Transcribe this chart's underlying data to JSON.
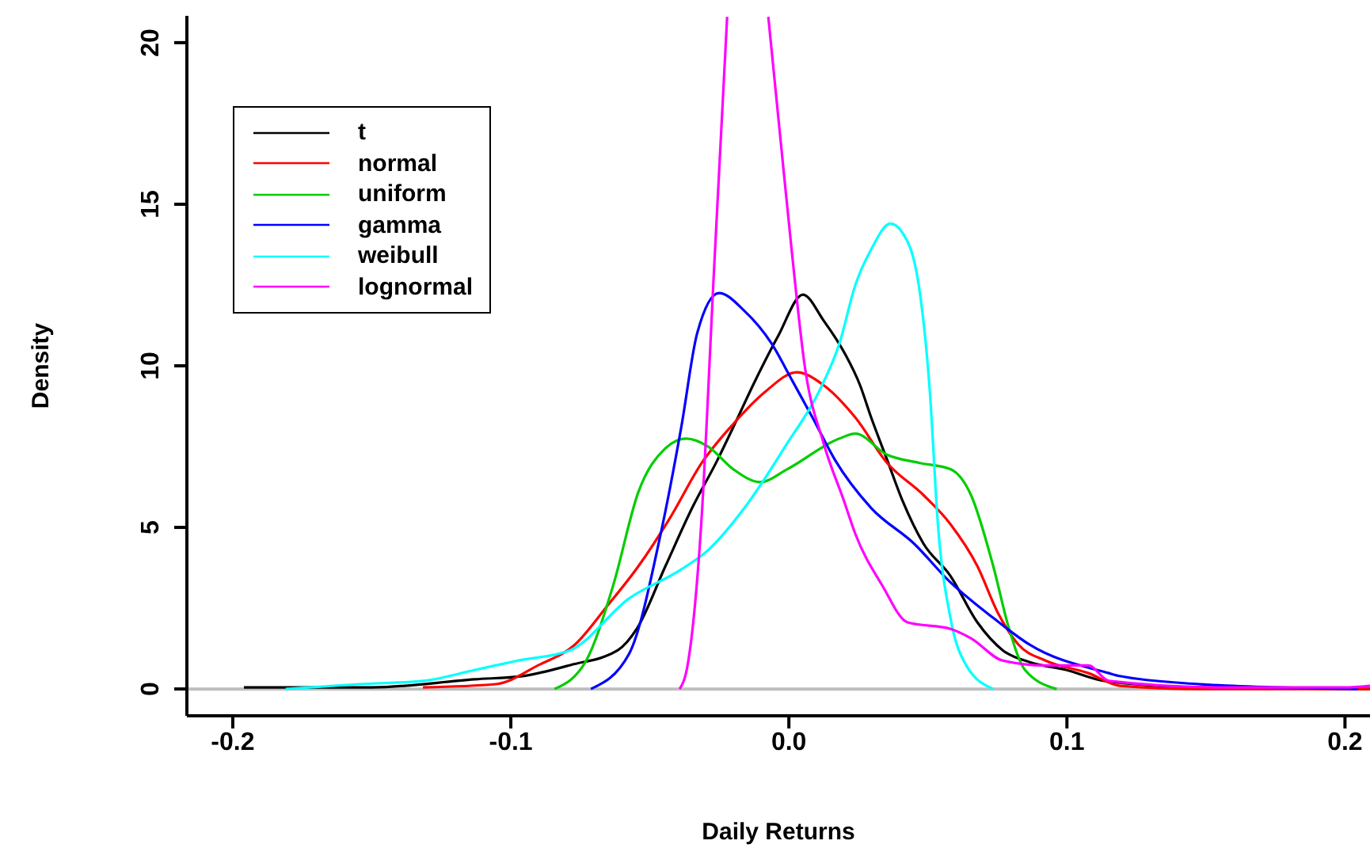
{
  "chart_data": {
    "type": "line",
    "xlabel": "Daily Returns",
    "ylabel": "Density",
    "xlim": [
      -0.2165,
      0.209
    ],
    "ylim": [
      -0.83,
      20.83
    ],
    "xticks": [
      -0.2,
      -0.1,
      {
        "value": 0,
        "label": "0.0"
      },
      0.1,
      0.2
    ],
    "yticks": [
      0,
      5,
      10,
      15,
      20
    ],
    "grid": false,
    "legend": "top left",
    "marker": "none",
    "line_style": "solid",
    "ref_lines": [
      {
        "axis": "y",
        "value": 0,
        "color": "#bebebe"
      }
    ],
    "series": [
      {
        "name": "t",
        "color": "#000000",
        "x": [
          -0.196,
          -0.15,
          -0.113,
          -0.0957,
          -0.0786,
          -0.0615,
          -0.0547,
          -0.0444,
          -0.0348,
          -0.0256,
          -0.02,
          -0.012,
          -0.004,
          0.0051,
          0.0125,
          0.02,
          0.0256,
          0.0296,
          0.0353,
          0.041,
          0.0484,
          0.0581,
          0.0678,
          0.0769,
          0.0866,
          0.0997,
          0.1134,
          0.1476,
          0.209
        ],
        "values": [
          0.05,
          0.05,
          0.3,
          0.4,
          0.74,
          1.2,
          1.86,
          3.8,
          5.6,
          7.1,
          8.1,
          9.56,
          10.9,
          12.2,
          11.4,
          10.4,
          9.4,
          8.4,
          7.1,
          5.8,
          4.5,
          3.5,
          2.06,
          1.2,
          0.83,
          0.59,
          0.25,
          0.05,
          0
        ]
      },
      {
        "name": "normal",
        "color": "#ff0000",
        "x": [
          -0.1316,
          -0.1054,
          -0.09,
          -0.077,
          -0.0655,
          -0.0541,
          -0.0427,
          -0.0313,
          -0.02,
          -0.0085,
          0.0029,
          0.0125,
          0.0239,
          0.0353,
          0.0484,
          0.0581,
          0.0678,
          0.0752,
          0.0826,
          0.0923,
          0.1077,
          0.119,
          0.1476,
          0.209
        ],
        "values": [
          0.05,
          0.15,
          0.74,
          1.37,
          2.55,
          3.8,
          5.3,
          7.0,
          8.2,
          9.2,
          9.8,
          9.4,
          8.4,
          7.0,
          6.0,
          5.1,
          3.8,
          2.35,
          1.37,
          0.88,
          0.49,
          0.1,
          0,
          0
        ]
      },
      {
        "name": "uniform",
        "color": "#00cd00",
        "x": [
          -0.0843,
          -0.0729,
          -0.0632,
          -0.0541,
          -0.0444,
          -0.037,
          -0.029,
          -0.02,
          -0.0103,
          -0.0006,
          0.0182,
          0.0239,
          0.0353,
          0.0467,
          0.0581,
          0.0655,
          0.0735,
          0.0792,
          0.0849,
          0.0963
        ],
        "values": [
          0,
          0.88,
          3.2,
          6.1,
          7.45,
          7.75,
          7.5,
          6.8,
          6.4,
          6.8,
          7.75,
          7.9,
          7.25,
          7.0,
          6.8,
          6.0,
          3.8,
          1.86,
          0.59,
          0
        ]
      },
      {
        "name": "gamma",
        "color": "#0000ff",
        "x": [
          -0.0712,
          -0.0575,
          -0.0461,
          -0.0387,
          -0.033,
          -0.0251,
          -0.016,
          -0.0063,
          0.0011,
          0.0085,
          0.0165,
          0.0296,
          0.045,
          0.0581,
          0.0735,
          0.0866,
          0.1151,
          0.119,
          0.1476,
          0.176,
          0.2046
        ],
        "values": [
          0,
          1.08,
          4.8,
          8.1,
          11.0,
          12.25,
          11.7,
          10.7,
          9.56,
          8.4,
          7.1,
          5.6,
          4.5,
          3.3,
          2.2,
          1.37,
          0.49,
          0.4,
          0.15,
          0.05,
          0
        ]
      },
      {
        "name": "weibull",
        "color": "#00ffff",
        "x": [
          -0.181,
          -0.1544,
          -0.1316,
          -0.1128,
          -0.0974,
          -0.0786,
          -0.0575,
          -0.0387,
          -0.029,
          -0.016,
          -0.0006,
          0.0108,
          0.0182,
          0.0239,
          0.0296,
          0.0365,
          0.041,
          0.0467,
          0.0507,
          0.0536,
          0.0581,
          0.0638,
          0.0735
        ],
        "values": [
          0,
          0.15,
          0.25,
          0.59,
          0.88,
          1.2,
          2.8,
          3.7,
          4.3,
          5.6,
          7.6,
          9.2,
          10.7,
          12.5,
          13.6,
          14.4,
          14.1,
          12.5,
          9.2,
          5.1,
          2.2,
          0.73,
          0
        ]
      },
      {
        "name": "lognormal",
        "color": "#ff00ff",
        "x": [
          -0.0393,
          -0.0365,
          -0.0316,
          -0.0269,
          -0.0222,
          -0.015,
          -0.0074,
          -0.003,
          0.0011,
          0.0057,
          0.0125,
          0.0199,
          0.0239,
          0.0336,
          0.0427,
          0.0581,
          0.0655,
          0.0769,
          0.0923,
          0.1077,
          0.1151,
          0.155,
          0.2,
          0.209
        ],
        "values": [
          0,
          0.7,
          5,
          13,
          20.8,
          null,
          20.8,
          17,
          13.5,
          10,
          7.6,
          5.8,
          4.8,
          3.2,
          2.06,
          1.86,
          1.57,
          0.88,
          0.73,
          0.73,
          0.25,
          0.05,
          0.05,
          0.1
        ]
      }
    ]
  }
}
